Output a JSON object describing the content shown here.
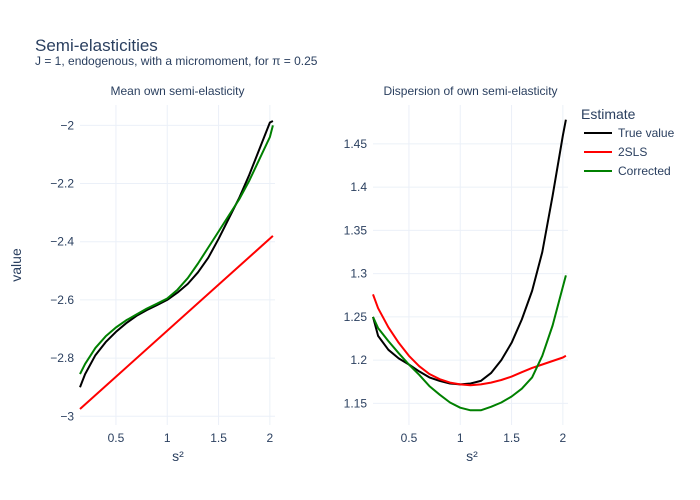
{
  "title": "Semi-elasticities",
  "subtitle": "J = 1, endogenous, with a micromoment,  for π = 0.25",
  "xlabel": "s²",
  "ylabel": "value",
  "legend": {
    "title": "Estimate",
    "placement": "right",
    "entries": [
      {
        "name": "True value",
        "color": "#000000"
      },
      {
        "name": "2SLS",
        "color": "#ff0000"
      },
      {
        "name": "Corrected",
        "color": "#008000"
      }
    ]
  },
  "chart_data": [
    {
      "type": "line",
      "title": "Mean own semi-elasticity",
      "xlabel": "s²",
      "ylabel": "value",
      "xlim": [
        0.15,
        2.05
      ],
      "ylim": [
        -3.03,
        -1.93
      ],
      "xticks": [
        0.5,
        1,
        1.5,
        2
      ],
      "xtick_labels": [
        "0.5",
        "1",
        "1.5",
        "2"
      ],
      "yticks": [
        -3,
        -2.8,
        -2.6,
        -2.4,
        -2.2,
        -2
      ],
      "ytick_labels": [
        "−3",
        "−2.8",
        "−2.6",
        "−2.4",
        "−2.2",
        "−2"
      ],
      "grid": true,
      "series": [
        {
          "name": "True value",
          "color": "#000000",
          "x": [
            0.15,
            0.2,
            0.3,
            0.4,
            0.5,
            0.6,
            0.7,
            0.8,
            0.9,
            1.0,
            1.1,
            1.2,
            1.3,
            1.4,
            1.5,
            1.6,
            1.7,
            1.8,
            1.9,
            2.0,
            2.03
          ],
          "y": [
            -2.9,
            -2.855,
            -2.79,
            -2.745,
            -2.71,
            -2.68,
            -2.655,
            -2.635,
            -2.618,
            -2.6,
            -2.575,
            -2.545,
            -2.505,
            -2.455,
            -2.39,
            -2.32,
            -2.25,
            -2.17,
            -2.08,
            -1.99,
            -1.985
          ]
        },
        {
          "name": "2SLS",
          "color": "#ff0000",
          "x": [
            0.15,
            2.03
          ],
          "y": [
            -2.975,
            -2.38
          ]
        },
        {
          "name": "Corrected",
          "color": "#008000",
          "x": [
            0.15,
            0.2,
            0.3,
            0.4,
            0.5,
            0.6,
            0.7,
            0.8,
            0.9,
            1.0,
            1.1,
            1.2,
            1.3,
            1.4,
            1.5,
            1.6,
            1.7,
            1.8,
            1.9,
            2.0,
            2.03
          ],
          "y": [
            -2.855,
            -2.82,
            -2.765,
            -2.725,
            -2.695,
            -2.67,
            -2.65,
            -2.63,
            -2.613,
            -2.595,
            -2.565,
            -2.525,
            -2.475,
            -2.42,
            -2.365,
            -2.31,
            -2.255,
            -2.19,
            -2.115,
            -2.04,
            -2.0
          ]
        }
      ]
    },
    {
      "type": "line",
      "title": "Dispersion of own semi-elasticity",
      "xlabel": "s²",
      "xlim": [
        0.15,
        2.05
      ],
      "ylim": [
        1.125,
        1.495
      ],
      "xticks": [
        0.5,
        1,
        1.5,
        2
      ],
      "xtick_labels": [
        "0.5",
        "1",
        "1.5",
        "2"
      ],
      "yticks": [
        1.15,
        1.2,
        1.25,
        1.3,
        1.35,
        1.4,
        1.45
      ],
      "ytick_labels": [
        "1.15",
        "1.2",
        "1.25",
        "1.3",
        "1.35",
        "1.4",
        "1.45"
      ],
      "grid": true,
      "series": [
        {
          "name": "True value",
          "color": "#000000",
          "x": [
            0.15,
            0.2,
            0.3,
            0.4,
            0.5,
            0.6,
            0.7,
            0.8,
            0.9,
            1.0,
            1.1,
            1.2,
            1.3,
            1.4,
            1.5,
            1.6,
            1.7,
            1.8,
            1.9,
            2.0,
            2.03
          ],
          "y": [
            1.25,
            1.228,
            1.212,
            1.202,
            1.195,
            1.187,
            1.18,
            1.176,
            1.173,
            1.172,
            1.173,
            1.176,
            1.185,
            1.2,
            1.22,
            1.247,
            1.28,
            1.325,
            1.39,
            1.46,
            1.478
          ]
        },
        {
          "name": "2SLS",
          "color": "#ff0000",
          "x": [
            0.15,
            0.2,
            0.3,
            0.4,
            0.5,
            0.6,
            0.7,
            0.8,
            0.9,
            1.0,
            1.1,
            1.2,
            1.3,
            1.4,
            1.5,
            1.6,
            1.7,
            1.8,
            1.9,
            2.0,
            2.03
          ],
          "y": [
            1.276,
            1.26,
            1.238,
            1.22,
            1.205,
            1.193,
            1.184,
            1.178,
            1.174,
            1.172,
            1.171,
            1.172,
            1.174,
            1.177,
            1.181,
            1.186,
            1.191,
            1.195,
            1.199,
            1.203,
            1.205
          ]
        },
        {
          "name": "Corrected",
          "color": "#008000",
          "x": [
            0.15,
            0.2,
            0.3,
            0.4,
            0.5,
            0.6,
            0.7,
            0.8,
            0.9,
            1.0,
            1.1,
            1.2,
            1.3,
            1.4,
            1.5,
            1.6,
            1.7,
            1.8,
            1.9,
            2.0,
            2.03
          ],
          "y": [
            1.25,
            1.237,
            1.222,
            1.208,
            1.195,
            1.183,
            1.17,
            1.16,
            1.151,
            1.145,
            1.142,
            1.142,
            1.146,
            1.151,
            1.158,
            1.167,
            1.18,
            1.205,
            1.24,
            1.285,
            1.298
          ]
        }
      ]
    }
  ]
}
